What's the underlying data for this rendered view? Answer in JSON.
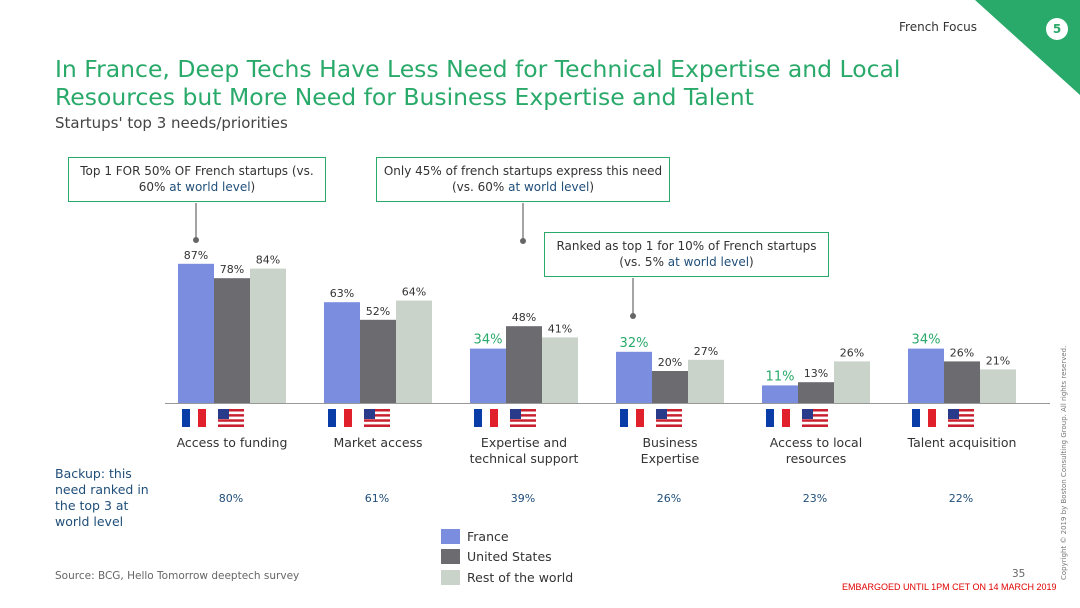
{
  "header": {
    "tag": "French Focus",
    "slide_number": "5"
  },
  "title": "In France, Deep Techs Have Less Need for Technical Expertise and Local Resources but More Need for Business Expertise and Talent",
  "subtitle": "Startups' top 3 needs/priorities",
  "callouts": [
    {
      "line1": "Top 1 FOR 50% OF French startups (vs.",
      "line2_pre": "60% ",
      "line2_hl": "at world level",
      "line2_post": ")"
    },
    {
      "line1": "Only 45% of french startups express this need",
      "line2_pre": "(vs. 60% ",
      "line2_hl": "at world level",
      "line2_post": ")"
    },
    {
      "line1": "Ranked as top 1 for 10% of French startups",
      "line2_pre": "(vs. 5% ",
      "line2_hl": "at world level",
      "line2_post": ")"
    }
  ],
  "chart_data": {
    "type": "bar",
    "categories": [
      "Access to funding",
      "Market access",
      "Expertise  and technical support",
      "Business Expertise",
      "Access to local resources",
      "Talent acquisition"
    ],
    "category_lines": [
      [
        "Access to funding"
      ],
      [
        "Market access"
      ],
      [
        "Expertise  and",
        "technical support"
      ],
      [
        "Business",
        "Expertise"
      ],
      [
        "Access to local",
        "resources"
      ],
      [
        "Talent acquisition"
      ]
    ],
    "series": [
      {
        "name": "France",
        "values": [
          87,
          63,
          34,
          32,
          11,
          34
        ]
      },
      {
        "name": "United States",
        "values": [
          78,
          52,
          48,
          20,
          13,
          26
        ]
      },
      {
        "name": "Rest of the world",
        "values": [
          84,
          64,
          41,
          27,
          26,
          21
        ]
      }
    ],
    "highlighted_france_labels": [
      false,
      false,
      true,
      true,
      true,
      true
    ],
    "value_suffix": "%",
    "ylim": [
      0,
      100
    ],
    "grid": false,
    "legend": "bottom-center",
    "colors": {
      "France": "#7b8ddf",
      "United States": "#6b6b70",
      "Rest of the world": "#c9d3ca",
      "highlight": "#2aaa6a"
    }
  },
  "backup": {
    "label": "Backup: this need ranked in the top 3 at world level",
    "values": [
      "80%",
      "61%",
      "39%",
      "26%",
      "23%",
      "22%"
    ]
  },
  "legend": {
    "items": [
      "France",
      "United States",
      "Rest of the world"
    ]
  },
  "footer": {
    "source": "Source: BCG, Hello Tomorrow deeptech survey",
    "page": "35",
    "embargo": "EMBARGOED UNTIL 1PM CET ON 14 MARCH 2019",
    "copyright": "Copyright © 2019 by Boston Consulting Group. All rights reserved."
  }
}
